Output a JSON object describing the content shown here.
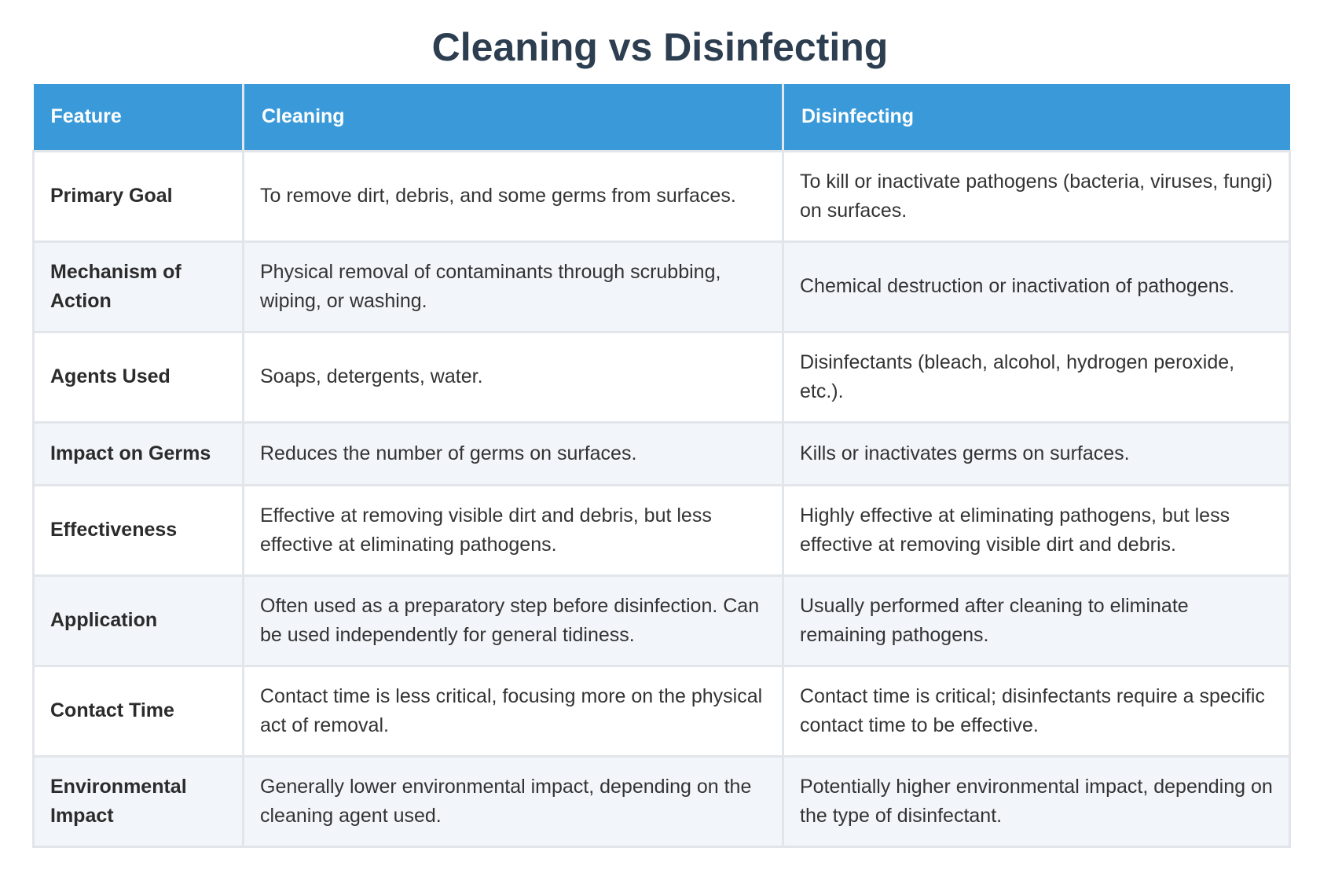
{
  "title": "Cleaning vs Disinfecting",
  "colors": {
    "header_bg": "#3a9ad9",
    "title_text": "#2c3e50",
    "row_alt_bg": "#f2f5f9",
    "border": "#e2e6ea"
  },
  "table": {
    "headers": [
      "Feature",
      "Cleaning",
      "Disinfecting"
    ],
    "rows": [
      {
        "feature": "Primary Goal",
        "cleaning": "To remove dirt, debris, and some germs from surfaces.",
        "disinfecting": "To kill or inactivate pathogens (bacteria, viruses, fungi) on surfaces."
      },
      {
        "feature": "Mechanism of Action",
        "cleaning": "Physical removal of contaminants through scrubbing, wiping, or washing.",
        "disinfecting": "Chemical destruction or inactivation of pathogens."
      },
      {
        "feature": "Agents Used",
        "cleaning": "Soaps, detergents, water.",
        "disinfecting": "Disinfectants (bleach, alcohol, hydrogen peroxide, etc.)."
      },
      {
        "feature": "Impact on Germs",
        "cleaning": "Reduces the number of germs on surfaces.",
        "disinfecting": "Kills or inactivates germs on surfaces."
      },
      {
        "feature": "Effectiveness",
        "cleaning": "Effective at removing visible dirt and debris, but less effective at eliminating pathogens.",
        "disinfecting": "Highly effective at eliminating pathogens, but less effective at removing visible dirt and debris."
      },
      {
        "feature": "Application",
        "cleaning": "Often used as a preparatory step before disinfection. Can be used independently for general tidiness.",
        "disinfecting": "Usually performed after cleaning to eliminate remaining pathogens."
      },
      {
        "feature": "Contact Time",
        "cleaning": "Contact time is less critical, focusing more on the physical act of removal.",
        "disinfecting": "Contact time is critical; disinfectants require a specific contact time to be effective."
      },
      {
        "feature": "Environmental Impact",
        "cleaning": "Generally lower environmental impact, depending on the cleaning agent used.",
        "disinfecting": "Potentially higher environmental impact, depending on the type of disinfectant."
      }
    ]
  }
}
